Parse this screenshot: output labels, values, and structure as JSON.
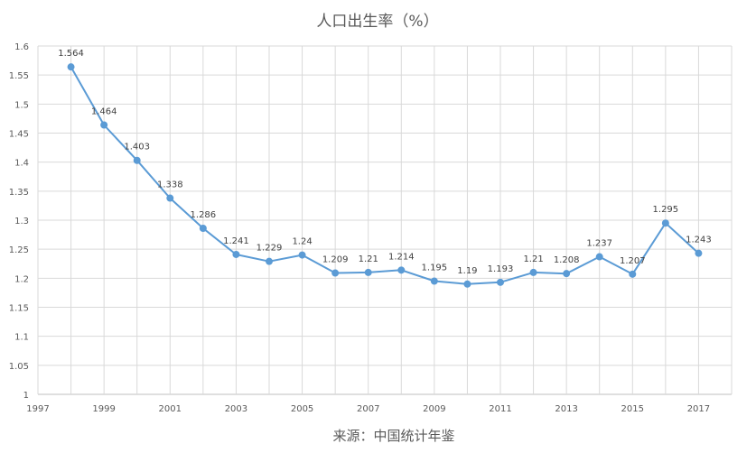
{
  "chart_data": {
    "type": "line",
    "title": "人口出生率（%）",
    "source_note": "来源：中国统计年鉴",
    "xlabel": "",
    "ylabel": "",
    "x_ticks": [
      "1997",
      "1999",
      "2001",
      "2003",
      "2005",
      "2007",
      "2009",
      "2011",
      "2013",
      "2015",
      "2017"
    ],
    "y_ticks": [
      "1",
      "1.05",
      "1.1",
      "1.15",
      "1.2",
      "1.25",
      "1.3",
      "1.35",
      "1.4",
      "1.45",
      "1.5",
      "1.55",
      "1.6"
    ],
    "xlim": [
      1997,
      2018
    ],
    "ylim": [
      1,
      1.6
    ],
    "grid": true,
    "line_color": "#5b9bd5",
    "grid_color": "#d9d9d9",
    "series": [
      {
        "x": [
          1998,
          1999,
          2000,
          2001,
          2002,
          2003,
          2004,
          2005,
          2006,
          2007,
          2008,
          2009,
          2010,
          2011,
          2012,
          2013,
          2014,
          2015,
          2016,
          2017
        ],
        "values": [
          1.564,
          1.464,
          1.403,
          1.338,
          1.286,
          1.241,
          1.229,
          1.24,
          1.209,
          1.21,
          1.214,
          1.195,
          1.19,
          1.193,
          1.21,
          1.208,
          1.237,
          1.207,
          1.295,
          1.243
        ],
        "labels": [
          "1.564",
          "1.464",
          "1.403",
          "1.338",
          "1.286",
          "1.241",
          "1.229",
          "1.24",
          "1.209",
          "1.21",
          "1.214",
          "1.195",
          "1.19",
          "1.193",
          "1.21",
          "1.208",
          "1.237",
          "1.207",
          "1.295",
          "1.243"
        ]
      }
    ]
  }
}
